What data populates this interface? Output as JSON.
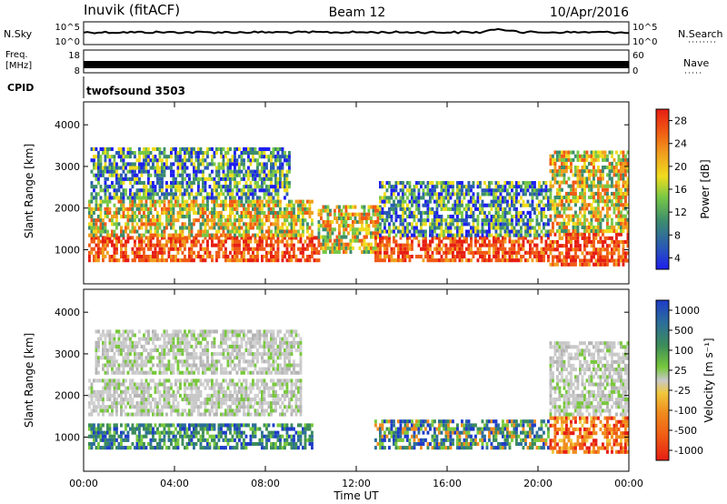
{
  "header": {
    "station": "Inuvik (fitACF)",
    "beam": "Beam 12",
    "date": "10/Apr/2016"
  },
  "top_panels": {
    "nsky": {
      "label": "N.Sky",
      "tick_top": "10^5",
      "tick_bottom": "10^0"
    },
    "nsearch": {
      "label": "N.Search",
      "tick_top": "10^5",
      "tick_bottom": "10^0"
    },
    "freq": {
      "label_line1": "Freq.",
      "label_line2": "[MHz]",
      "tick_top": "18",
      "tick_bottom": "8"
    },
    "nave": {
      "label": "Nave",
      "tick_top": "60",
      "tick_bottom": "0"
    },
    "cpid": {
      "label": "CPID",
      "value": "twofsound 3503"
    }
  },
  "chart_data": [
    {
      "type": "heatmap",
      "name": "power",
      "ylabel": "Slant Range [km]",
      "x_ticks": [
        "00:00",
        "04:00",
        "08:00",
        "12:00",
        "16:00",
        "20:00",
        "00:00"
      ],
      "x_range_hours": [
        0,
        24
      ],
      "y_ticks": [
        1000,
        2000,
        3000,
        4000
      ],
      "y_range_km": [
        180,
        4550
      ],
      "colorbar": {
        "label": "Power [dB]",
        "ticks": [
          "4",
          "8",
          "12",
          "16",
          "20",
          "24",
          "28"
        ],
        "colors": [
          "#1e1ef0",
          "#2a5ab4",
          "#3c8c6e",
          "#78c846",
          "#f0dc1e",
          "#f0a01e",
          "#f05a14",
          "#e61e14"
        ]
      },
      "bands": [
        {
          "t0": 0.2,
          "t1": 10.3,
          "r0": 700,
          "r1": 1300,
          "level": "high"
        },
        {
          "t0": 0.2,
          "t1": 10.0,
          "r0": 1300,
          "r1": 2200,
          "level": "mid"
        },
        {
          "t0": 0.3,
          "t1": 9.0,
          "r0": 2200,
          "r1": 3400,
          "level": "low"
        },
        {
          "t0": 10.3,
          "t1": 13.0,
          "r0": 900,
          "r1": 2000,
          "level": "mid"
        },
        {
          "t0": 12.8,
          "t1": 20.5,
          "r0": 700,
          "r1": 1300,
          "level": "high"
        },
        {
          "t0": 13.0,
          "t1": 20.5,
          "r0": 1300,
          "r1": 2600,
          "level": "low"
        },
        {
          "t0": 20.5,
          "t1": 24.0,
          "r0": 600,
          "r1": 1400,
          "level": "high"
        },
        {
          "t0": 20.5,
          "t1": 24.0,
          "r0": 1400,
          "r1": 3300,
          "level": "mid"
        }
      ]
    },
    {
      "type": "heatmap",
      "name": "velocity",
      "ylabel": "Slant Range [km]",
      "xlabel": "Time UT",
      "x_ticks": [
        "00:00",
        "04:00",
        "08:00",
        "12:00",
        "16:00",
        "20:00",
        "00:00"
      ],
      "x_range_hours": [
        0,
        24
      ],
      "y_ticks": [
        1000,
        2000,
        3000,
        4000
      ],
      "y_range_km": [
        180,
        4550
      ],
      "colorbar": {
        "label": "Velocity [m s⁻¹]",
        "ticks": [
          "1000",
          "500",
          "100",
          "25",
          "-25",
          "-100",
          "-500",
          "-1000"
        ],
        "colors": [
          "#1e3cc8",
          "#2c6e9a",
          "#3c8c5a",
          "#78c83c",
          "#c8c8c8",
          "#f0c83c",
          "#f08c1e",
          "#f05a14",
          "#e61e14"
        ]
      },
      "bands": [
        {
          "t0": 0.2,
          "t1": 10.0,
          "r0": 700,
          "r1": 1300,
          "level": "toward"
        },
        {
          "t0": 0.2,
          "t1": 9.5,
          "r0": 1500,
          "r1": 2400,
          "level": "ground"
        },
        {
          "t0": 0.5,
          "t1": 9.5,
          "r0": 2500,
          "r1": 3500,
          "level": "ground"
        },
        {
          "t0": 12.8,
          "t1": 20.5,
          "r0": 700,
          "r1": 1400,
          "level": "mixed"
        },
        {
          "t0": 20.5,
          "t1": 24.0,
          "r0": 600,
          "r1": 1500,
          "level": "away"
        },
        {
          "t0": 20.5,
          "t1": 24.0,
          "r0": 1500,
          "r1": 3300,
          "level": "ground"
        }
      ]
    }
  ]
}
